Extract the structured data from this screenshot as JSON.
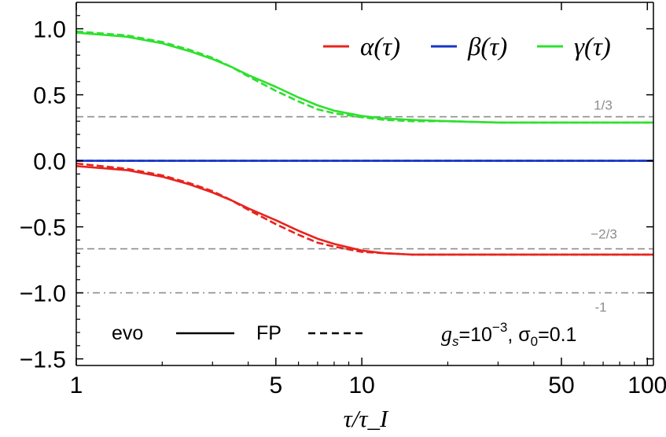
{
  "chart_data": {
    "type": "line",
    "x_scale": "log",
    "xlim": [
      1,
      105
    ],
    "ylim": [
      -1.55,
      1.2
    ],
    "xlabel": "τ/τ_I",
    "x_ticks": [
      1,
      5,
      10,
      50,
      100
    ],
    "x_tick_labels": [
      "1",
      "5",
      "10",
      "50",
      "100"
    ],
    "y_ticks": [
      1.0,
      0.5,
      0.0,
      -0.5,
      -1.0,
      -1.5
    ],
    "y_tick_labels": [
      "1.0",
      "0.5",
      "0.0",
      "−0.5",
      "−1.0",
      "−1.5"
    ],
    "colors": {
      "alpha": "#e8231e",
      "beta": "#1534c8",
      "gamma": "#2ee02e",
      "reference": "#8c8c8c"
    },
    "legend": {
      "position": "top-right",
      "entries": [
        {
          "name": "α(τ)",
          "color": "#e8231e"
        },
        {
          "name": "β(τ)",
          "color": "#1534c8"
        },
        {
          "name": "γ(τ)",
          "color": "#2ee02e"
        }
      ]
    },
    "style_legend": {
      "position": "bottom-left",
      "solid_label": "evo",
      "dashed_label": "FP"
    },
    "annotation": {
      "position": "bottom-right",
      "parts": [
        "g",
        "s",
        "=10",
        "−3",
        ", σ",
        "0",
        "=0.1"
      ]
    },
    "reference_lines": [
      {
        "y": 0.3333,
        "label": "1/3",
        "style": "dashed"
      },
      {
        "y": -0.6667,
        "label": "−2/3",
        "style": "dashed"
      },
      {
        "y": -1.0,
        "label": "-1",
        "style": "dashdot"
      }
    ],
    "series": [
      {
        "name": "α(τ) evo",
        "group": "alpha",
        "style": "solid",
        "x": [
          1,
          1.5,
          2,
          2.5,
          3,
          3.5,
          4,
          5,
          6,
          7,
          8,
          10,
          12,
          15,
          20,
          30,
          50,
          75,
          105
        ],
        "y": [
          -0.04,
          -0.07,
          -0.12,
          -0.18,
          -0.24,
          -0.3,
          -0.36,
          -0.45,
          -0.53,
          -0.59,
          -0.63,
          -0.68,
          -0.7,
          -0.71,
          -0.71,
          -0.71,
          -0.71,
          -0.71,
          -0.71
        ]
      },
      {
        "name": "α(τ) FP",
        "group": "alpha",
        "style": "dashed",
        "x": [
          1,
          1.5,
          2,
          2.5,
          3,
          3.5,
          4,
          5,
          6,
          7,
          8,
          10,
          12,
          15,
          20,
          30,
          50,
          75,
          105
        ],
        "y": [
          -0.02,
          -0.06,
          -0.11,
          -0.17,
          -0.23,
          -0.3,
          -0.37,
          -0.48,
          -0.56,
          -0.62,
          -0.65,
          -0.69,
          -0.7,
          -0.71,
          -0.71,
          -0.71,
          -0.71,
          -0.71,
          -0.71
        ]
      },
      {
        "name": "β(τ) evo",
        "group": "beta",
        "style": "solid",
        "x": [
          1,
          105
        ],
        "y": [
          0.0,
          0.0
        ]
      },
      {
        "name": "β(τ) FP",
        "group": "beta",
        "style": "dashed",
        "x": [
          1,
          105
        ],
        "y": [
          0.0,
          0.0
        ]
      },
      {
        "name": "γ(τ) evo",
        "group": "gamma",
        "style": "solid",
        "x": [
          1,
          1.5,
          2,
          2.5,
          3,
          3.5,
          4,
          5,
          6,
          7,
          8,
          10,
          12,
          15,
          20,
          30,
          50,
          75,
          105
        ],
        "y": [
          0.97,
          0.94,
          0.89,
          0.83,
          0.77,
          0.71,
          0.65,
          0.56,
          0.48,
          0.42,
          0.38,
          0.34,
          0.32,
          0.31,
          0.3,
          0.29,
          0.29,
          0.29,
          0.29
        ]
      },
      {
        "name": "γ(τ) FP",
        "group": "gamma",
        "style": "dashed",
        "x": [
          1,
          1.5,
          2,
          2.5,
          3,
          3.5,
          4,
          5,
          6,
          7,
          8,
          10,
          12,
          15,
          20,
          30,
          50,
          75,
          105
        ],
        "y": [
          0.98,
          0.95,
          0.9,
          0.84,
          0.78,
          0.71,
          0.64,
          0.53,
          0.45,
          0.39,
          0.36,
          0.33,
          0.31,
          0.3,
          0.3,
          0.29,
          0.29,
          0.29,
          0.29
        ]
      }
    ]
  }
}
